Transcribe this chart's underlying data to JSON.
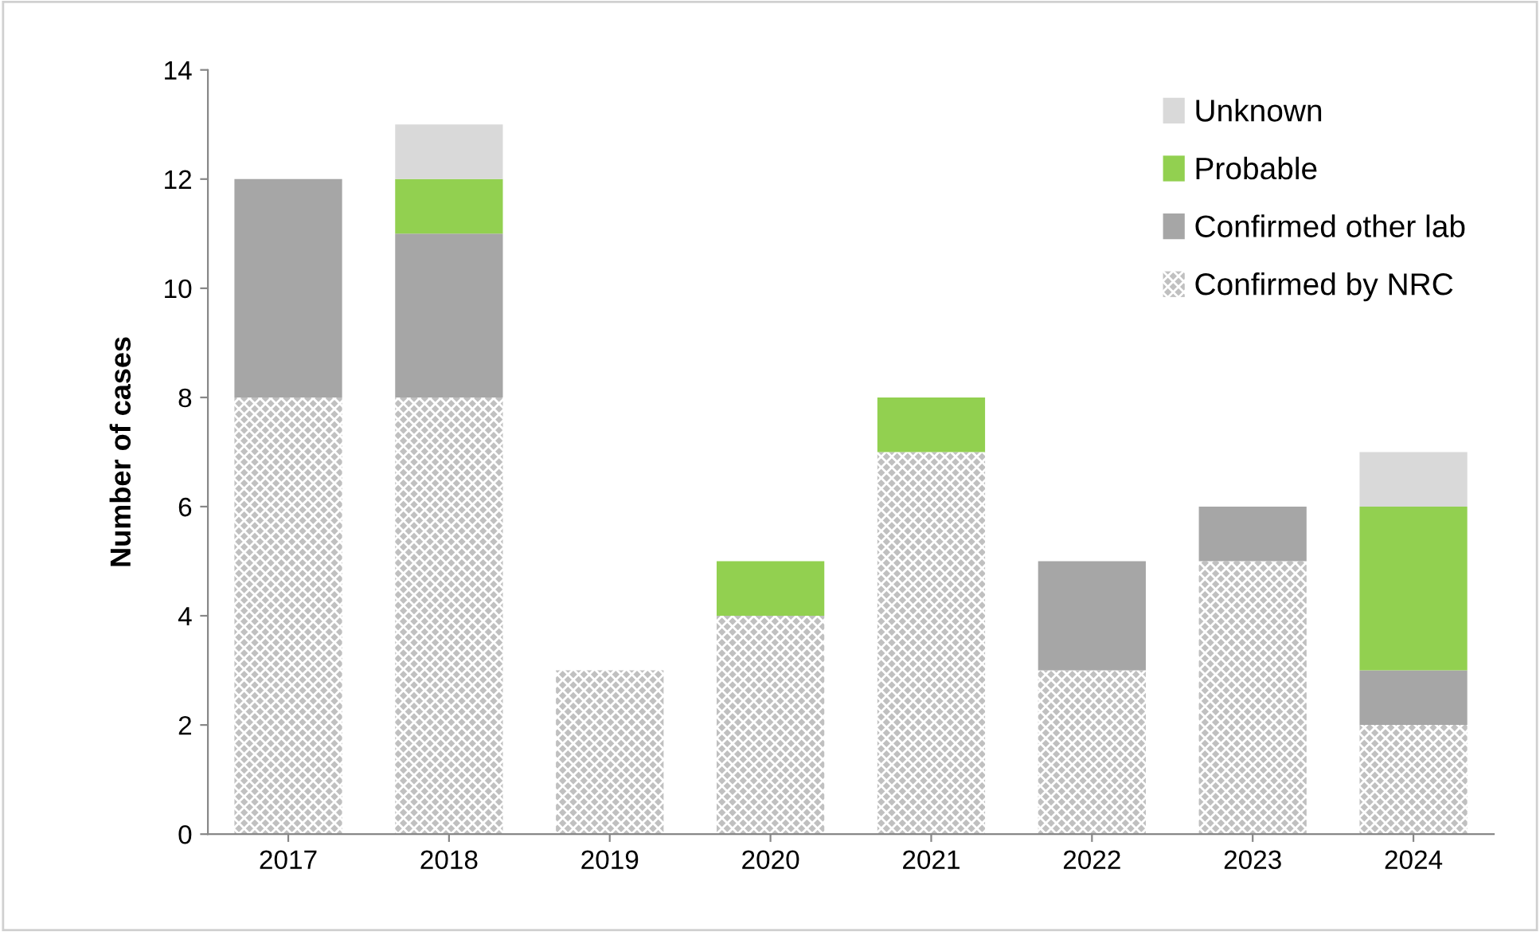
{
  "chart_data": {
    "type": "bar",
    "stacked": true,
    "ylabel": "Number of cases",
    "categories": [
      "2017",
      "2018",
      "2019",
      "2020",
      "2021",
      "2022",
      "2023",
      "2024"
    ],
    "series": [
      {
        "name": "Confirmed by NRC",
        "color": "#c0c0c0",
        "values": [
          8,
          8,
          3,
          4,
          7,
          3,
          5,
          2
        ]
      },
      {
        "name": "Confirmed other lab",
        "color": "#a6a6a6",
        "values": [
          4,
          3,
          0,
          0,
          0,
          2,
          1,
          1
        ]
      },
      {
        "name": "Probable",
        "color": "#92d050",
        "values": [
          0,
          1,
          0,
          1,
          1,
          0,
          0,
          3
        ]
      },
      {
        "name": "Unknown",
        "color": "#d9d9d9",
        "values": [
          0,
          1,
          0,
          0,
          0,
          0,
          0,
          1
        ]
      }
    ],
    "ylim": [
      0,
      14
    ],
    "yticks": [
      0,
      2,
      4,
      6,
      8,
      10,
      12,
      14
    ],
    "grid": false,
    "legend": "top right"
  }
}
